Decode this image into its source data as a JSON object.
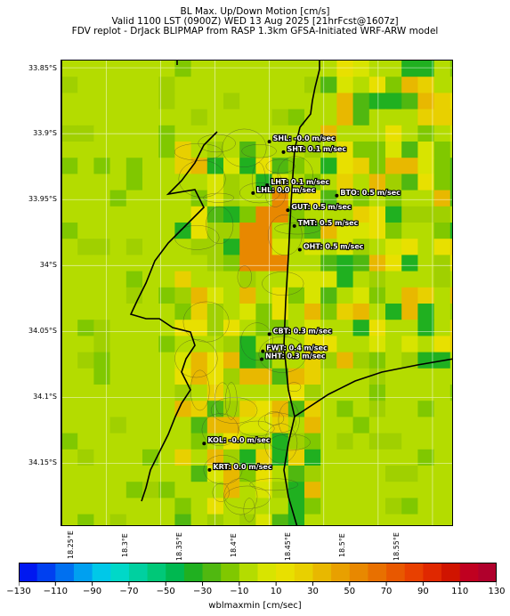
{
  "title_lines": [
    "BL Max. Up/Down Motion [cm/s]",
    "Valid 1100 LST (0900Z) WED 13 Aug 2025 [21hrFcst@1607z]",
    "FDV replot - DrJack BLIPMAP from RASP 1.3km GFSA-Initiated WRF-ARW model"
  ],
  "lat_ticks": [
    "33.85°S",
    "33.9°S",
    "33.95°S",
    "34°S",
    "34.05°S",
    "34.1°S",
    "34.15°S"
  ],
  "lon_ticks": [
    "18.25°E",
    "18.3°E",
    "18.35°E",
    "18.4°E",
    "18.45°E",
    "18.5°E",
    "18.55°E"
  ],
  "stations": [
    {
      "name": "SHL",
      "label": "SHL: -0.0 m/sec",
      "lon": 18.4,
      "lat": -33.906
    },
    {
      "name": "SHT",
      "label": "SHT: 0.1 m/sec",
      "lon": 18.413,
      "lat": -33.914
    },
    {
      "name": "LHT",
      "label": "LHT: 0.1 m/sec",
      "lon": 18.398,
      "lat": -33.939
    },
    {
      "name": "LHL",
      "label": "LHL: 0.0 m/sec",
      "lon": 18.385,
      "lat": -33.945
    },
    {
      "name": "BTO",
      "label": "BTO: 0.5 m/sec",
      "lon": 18.462,
      "lat": -33.947
    },
    {
      "name": "GUT",
      "label": "GUT: 0.5 m/sec",
      "lon": 18.417,
      "lat": -33.958
    },
    {
      "name": "TMT",
      "label": "TMT: 0.5 m/sec",
      "lon": 18.423,
      "lat": -33.97
    },
    {
      "name": "OHT",
      "label": "OHT: 0.5 m/sec",
      "lon": 18.428,
      "lat": -33.988
    },
    {
      "name": "CBT",
      "label": "CBT: 0.3 m/sec",
      "lon": 18.4,
      "lat": -34.052
    },
    {
      "name": "FWT",
      "label": "FWT: 0.4 m/sec",
      "lon": 18.394,
      "lat": -34.065
    },
    {
      "name": "NHT",
      "label": "NHT: 0.3 m/sec",
      "lon": 18.393,
      "lat": -34.071
    },
    {
      "name": "KOL",
      "label": "KOL: -0.0 m/sec",
      "lon": 18.34,
      "lat": -34.135
    },
    {
      "name": "KRT",
      "label": "KRT: 0.0 m/sec",
      "lon": 18.345,
      "lat": -34.155
    }
  ],
  "colorbar": {
    "title": "wblmaxmin [cm/sec]",
    "tick_labels": [
      "−130",
      "−110",
      "−90",
      "−70",
      "−50",
      "−30",
      "−10",
      "10",
      "30",
      "50",
      "70",
      "90",
      "110",
      "130"
    ],
    "colors": [
      "#0018f0",
      "#0040f0",
      "#0070f0",
      "#00a0f0",
      "#00c8e8",
      "#00d8c8",
      "#00d0a0",
      "#00c878",
      "#00b850",
      "#20b020",
      "#50b810",
      "#80c800",
      "#b4dc00",
      "#d8e400",
      "#e8e000",
      "#e8d000",
      "#e8b800",
      "#e8a000",
      "#e88800",
      "#e87000",
      "#e85800",
      "#e84000",
      "#e02800",
      "#d01400",
      "#c00020",
      "#b0002c"
    ]
  }
}
